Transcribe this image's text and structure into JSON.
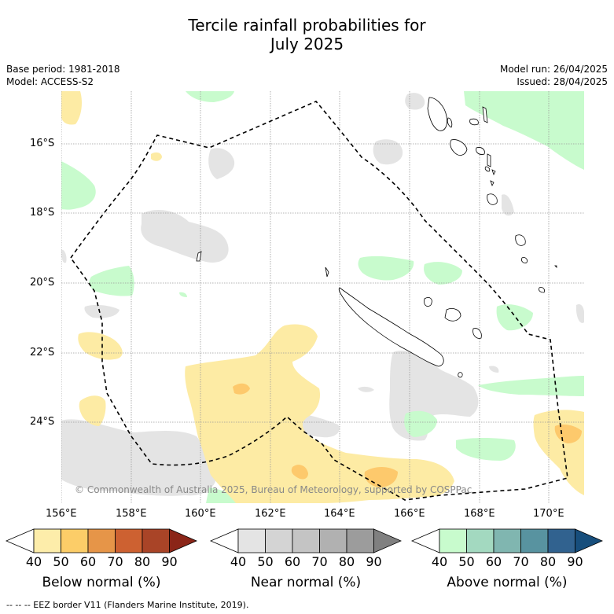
{
  "title_line1": "Tercile rainfall probabilities for",
  "title_line2": "July 2025",
  "base_period": "Base period: 1981-2018",
  "model": "Model: ACCESS-S2",
  "model_run": "Model run: 26/04/2025",
  "issued": "Issued: 28/04/2025",
  "copyright": "© Commonwealth of Australia 2025, Bureau of Meteorology, supported by COSPPac",
  "lon_ticks": [
    "156°E",
    "158°E",
    "160°E",
    "162°E",
    "164°E",
    "166°E",
    "168°E",
    "170°E"
  ],
  "lat_ticks": [
    "16°S",
    "18°S",
    "20°S",
    "22°S",
    "24°S"
  ],
  "colorbars": [
    {
      "label": "Below normal (%)",
      "ticks": [
        "40",
        "50",
        "60",
        "70",
        "80",
        "90"
      ],
      "colors": [
        "#ffffff",
        "#fdedaa",
        "#fccd68",
        "#e69548",
        "#cd6131",
        "#a94427",
        "#8b2518"
      ]
    },
    {
      "label": "Near normal (%)",
      "ticks": [
        "40",
        "50",
        "60",
        "70",
        "80",
        "90"
      ],
      "colors": [
        "#ffffff",
        "#e4e4e4",
        "#d4d4d4",
        "#c4c4c4",
        "#b1b1b1",
        "#9c9c9c",
        "#808080"
      ]
    },
    {
      "label": "Above normal (%)",
      "ticks": [
        "40",
        "50",
        "60",
        "70",
        "80",
        "90"
      ],
      "colors": [
        "#ffffff",
        "#c8fbcd",
        "#a3d9c0",
        "#80b6b0",
        "#5893a0",
        "#31628f",
        "#174e7c"
      ]
    }
  ],
  "footnote": "-- -- -- EEZ border V11 (Flanders Marine Institute, 2019).",
  "colors": {
    "below_50": "#fdeba4",
    "below_60": "#fdc96c",
    "near_50": "#e4e4e4",
    "above_50": "#c8fbcd",
    "grid": "#9a9a9a"
  }
}
